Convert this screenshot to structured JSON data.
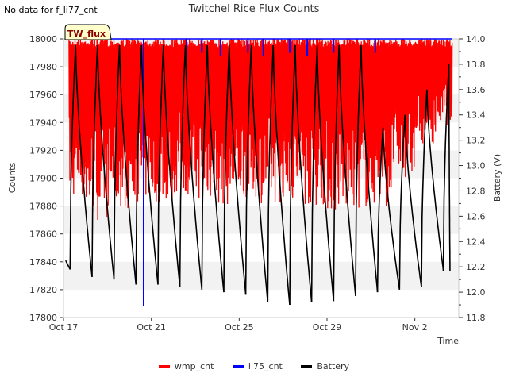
{
  "page": {
    "nodata": "No data for f_li77_cnt",
    "title": "Twitchel Rice Flux Counts"
  },
  "chart_data": {
    "type": "line",
    "title": "Twitchel Rice Flux Counts",
    "site_badge": "TW_flux",
    "xlabel": "Time",
    "ylabel": "Counts",
    "y2label": "Battery (V)",
    "x_range_days": [
      0,
      18
    ],
    "ylim": [
      17800,
      18000
    ],
    "y2lim": [
      11.8,
      14.0
    ],
    "x_ticks": [
      {
        "day": 0,
        "label": "Oct 17"
      },
      {
        "day": 4,
        "label": "Oct 21"
      },
      {
        "day": 8,
        "label": "Oct 25"
      },
      {
        "day": 12,
        "label": "Oct 29"
      },
      {
        "day": 16,
        "label": "Nov 2"
      }
    ],
    "y_ticks": [
      "17800",
      "17820",
      "17840",
      "17860",
      "17880",
      "17900",
      "17920",
      "17940",
      "17960",
      "17980",
      "18000"
    ],
    "y2_ticks": [
      "11.8",
      "12.0",
      "12.2",
      "12.4",
      "12.6",
      "12.8",
      "13.0",
      "13.2",
      "13.4",
      "13.6",
      "13.8",
      "14.0"
    ],
    "series": [
      {
        "name": "wmp_cnt",
        "color": "#ff0000",
        "daily_min": [
          17885,
          17870,
          17878,
          17883,
          17882,
          17888,
          17884,
          17880,
          17886,
          17882,
          17884,
          17880,
          17875,
          17878,
          17880,
          17900,
          17925,
          17938,
          17950
        ],
        "max": 18000
      },
      {
        "name": "li75_cnt",
        "color": "#0000ff",
        "value": 18000,
        "spikes": [
          {
            "day": 3.65,
            "min": 17808
          },
          {
            "day": 5.6,
            "min": 17985
          },
          {
            "day": 6.3,
            "min": 17990
          },
          {
            "day": 7.15,
            "min": 17988
          },
          {
            "day": 8.4,
            "min": 17990
          },
          {
            "day": 9.1,
            "min": 17988
          },
          {
            "day": 10.3,
            "min": 17990
          },
          {
            "day": 11.1,
            "min": 17988
          },
          {
            "day": 12.3,
            "min": 17990
          },
          {
            "day": 14.2,
            "min": 17990
          }
        ]
      },
      {
        "name": "Battery",
        "color": "#000000",
        "days": [
          {
            "start": 0.3,
            "peak": 13.95,
            "min": 12.18,
            "rise_end": 0.55
          },
          {
            "start": 1.3,
            "peak": 13.95,
            "min": 12.12,
            "rise_end": 1.55
          },
          {
            "start": 2.3,
            "peak": 13.95,
            "min": 12.1,
            "rise_end": 2.55
          },
          {
            "start": 3.3,
            "peak": 13.95,
            "min": 12.06,
            "rise_end": 3.55
          },
          {
            "start": 4.3,
            "peak": 13.95,
            "min": 12.06,
            "rise_end": 4.55
          },
          {
            "start": 5.3,
            "peak": 13.95,
            "min": 12.04,
            "rise_end": 5.55
          },
          {
            "start": 6.3,
            "peak": 13.95,
            "min": 12.02,
            "rise_end": 6.55
          },
          {
            "start": 7.3,
            "peak": 13.95,
            "min": 12.0,
            "rise_end": 7.55
          },
          {
            "start": 8.3,
            "peak": 13.95,
            "min": 11.98,
            "rise_end": 8.55
          },
          {
            "start": 9.3,
            "peak": 13.95,
            "min": 11.92,
            "rise_end": 9.55
          },
          {
            "start": 10.3,
            "peak": 13.95,
            "min": 11.9,
            "rise_end": 10.55
          },
          {
            "start": 11.3,
            "peak": 13.95,
            "min": 11.92,
            "rise_end": 11.55
          },
          {
            "start": 12.3,
            "peak": 13.95,
            "min": 11.93,
            "rise_end": 12.55
          },
          {
            "start": 13.3,
            "peak": 13.95,
            "min": 11.97,
            "rise_end": 13.55
          },
          {
            "start": 14.3,
            "peak": 13.3,
            "min": 12.0,
            "rise_end": 14.55
          },
          {
            "start": 15.3,
            "peak": 13.4,
            "min": 12.02,
            "rise_end": 15.55
          },
          {
            "start": 16.3,
            "peak": 13.6,
            "min": 12.04,
            "rise_end": 16.55
          },
          {
            "start": 17.3,
            "peak": 13.8,
            "min": 12.17,
            "rise_end": 17.55
          }
        ]
      }
    ],
    "legend": [
      "wmp_cnt",
      "li75_cnt",
      "Battery"
    ]
  }
}
